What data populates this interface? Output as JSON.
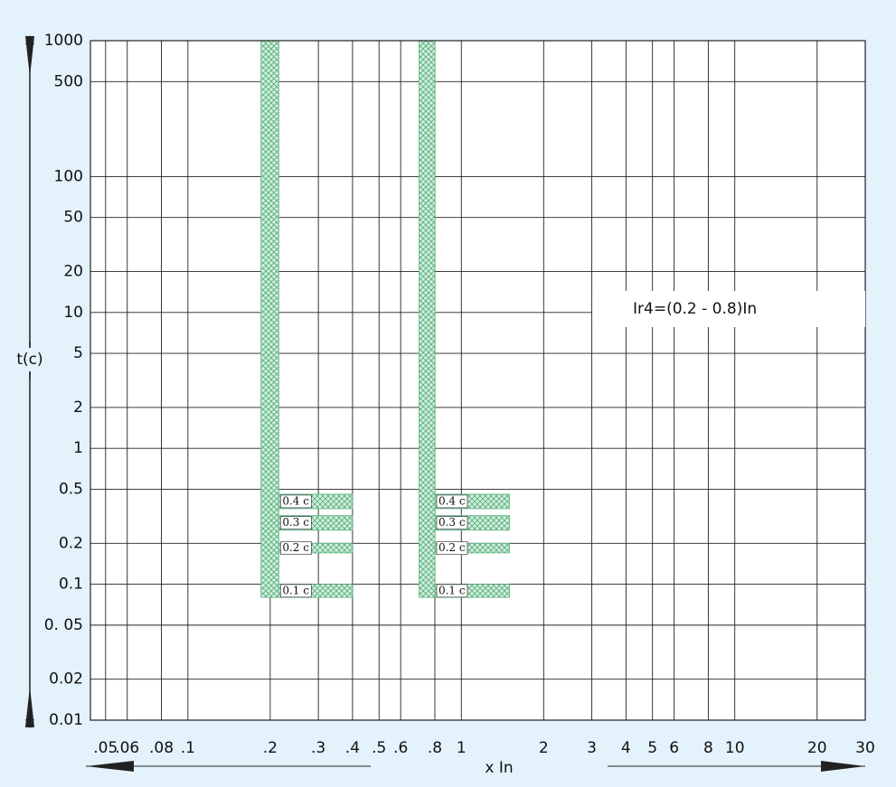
{
  "chart_data": {
    "type": "time-current",
    "ylabel": "t(c)",
    "xlabel": "x In",
    "annotation": "Ir4=(0.2 - 0.8)In",
    "log_x": true,
    "log_y": true,
    "grid": true,
    "band_color": "#5db585",
    "xlim": [
      0.044,
      30
    ],
    "ylim": [
      0.01,
      1000
    ],
    "xticks": [
      {
        "value": 0.05,
        "label": ".05"
      },
      {
        "value": 0.06,
        "label": ".06"
      },
      {
        "value": 0.08,
        "label": ".08"
      },
      {
        "value": 0.1,
        "label": ".1"
      },
      {
        "value": 0.2,
        "label": ".2"
      },
      {
        "value": 0.3,
        "label": ".3"
      },
      {
        "value": 0.4,
        "label": ".4"
      },
      {
        "value": 0.5,
        "label": ".5"
      },
      {
        "value": 0.6,
        "label": ".6"
      },
      {
        "value": 0.8,
        "label": ".8"
      },
      1,
      2,
      3,
      4,
      5,
      6,
      8,
      10,
      20,
      30
    ],
    "yticks": [
      1000,
      500,
      100,
      50,
      20,
      10,
      5,
      2,
      1,
      0.5,
      0.2,
      0.1,
      {
        "value": 0.05,
        "label": "0. 05"
      },
      0.02,
      0.01
    ],
    "bands": [
      {
        "x": [
          0.185,
          0.215
        ],
        "t": [
          0.08,
          1000
        ],
        "x_end": 0.4
      },
      {
        "x": [
          0.7,
          0.8
        ],
        "t": [
          0.08,
          1000
        ],
        "x_end": 1.5
      }
    ],
    "delays": [
      {
        "label": "0.4 c",
        "t": [
          0.36,
          0.46
        ]
      },
      {
        "label": "0.3 c",
        "t": [
          0.25,
          0.32
        ]
      },
      {
        "label": "0.2 c",
        "t": [
          0.17,
          0.2
        ]
      },
      {
        "label": "0.1 c",
        "t": [
          0.08,
          0.1
        ]
      }
    ]
  }
}
